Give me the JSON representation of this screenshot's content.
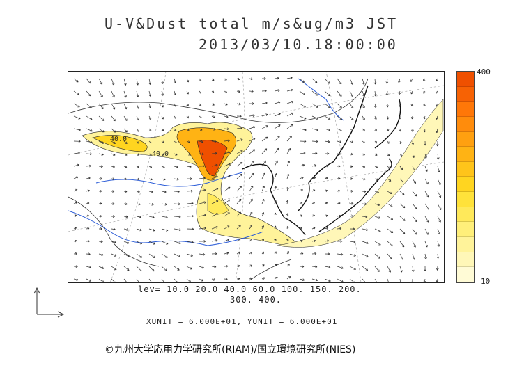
{
  "title": {
    "line1": "U-V&Dust total m/s&ug/m3 JST",
    "line2": "2013/03/10.18:00:00"
  },
  "colorbar": {
    "max_label": "400",
    "min_label": "10",
    "colors": [
      "#fffbd6",
      "#fff7b8",
      "#fff39a",
      "#ffef7a",
      "#ffe95a",
      "#ffe23a",
      "#ffd520",
      "#ffc41a",
      "#ffb314",
      "#ffa010",
      "#ff8c0c",
      "#ff7708",
      "#f76204",
      "#ef5000"
    ]
  },
  "contour_labels": [
    "40.0",
    "40.0"
  ],
  "levels": {
    "line1": "lev= 10.0 20.0 40.0 60.0 100. 150. 200.",
    "line2": "300. 400."
  },
  "units": "XUNIT = 6.000E+01, YUNIT = 6.000E+01",
  "copyright": "©九州大学応用力学研究所(RIAM)/国立環境研究所(NIES)"
}
